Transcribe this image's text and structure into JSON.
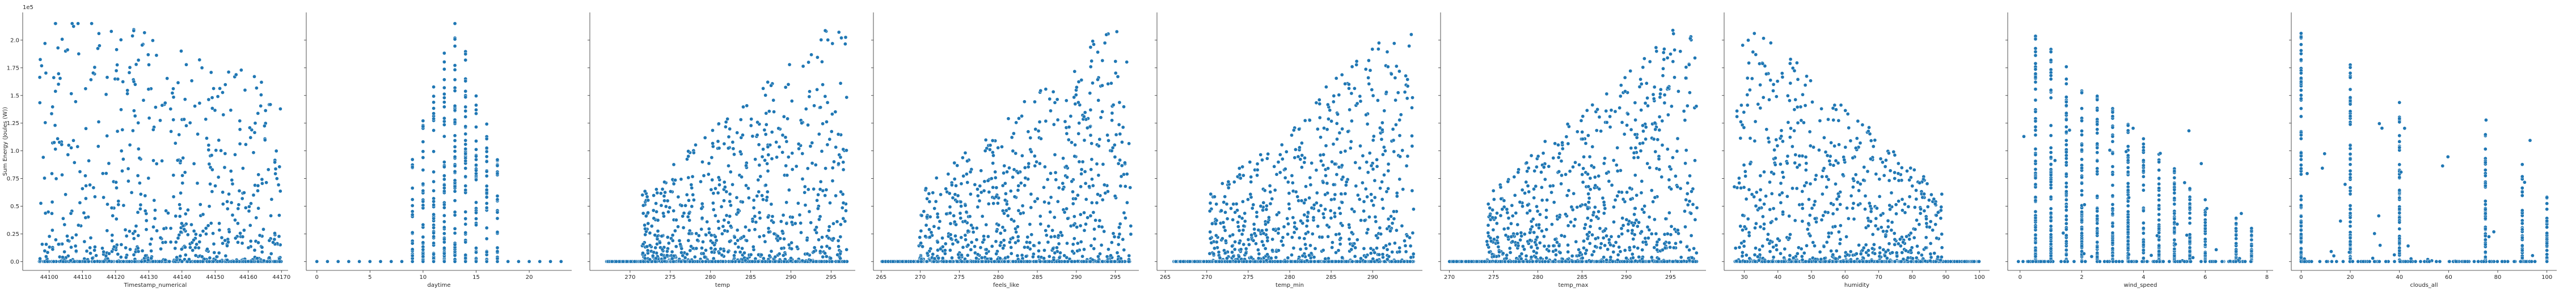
{
  "chart_data": [
    {
      "type": "scatter",
      "xlabel": "Timestamp_numerical",
      "ylabel": "Sum Energy (Joules (W))",
      "y_scale_label": "1e5",
      "xlim": [
        44092,
        44172
      ],
      "ylim": [
        -0.08,
        2.25
      ],
      "xticks": [
        44100,
        44110,
        44120,
        44130,
        44140,
        44150,
        44160,
        44170
      ],
      "yticks": [
        0.0,
        0.25,
        0.5,
        0.75,
        1.0,
        1.25,
        1.5,
        1.75,
        2.0
      ],
      "ytick_labels": [
        "0.0",
        "0.25",
        "0.5",
        "0.75",
        "1.0",
        "1.25",
        "1.5",
        "1.75",
        "2.0"
      ],
      "distribution": {
        "kind": "uniform",
        "range": [
          44097,
          44170
        ],
        "peak_y": 2.15
      }
    },
    {
      "type": "scatter",
      "xlabel": "daytime",
      "ylabel": "",
      "xlim": [
        -1,
        24
      ],
      "ylim": [
        -0.08,
        2.25
      ],
      "xticks": [
        0,
        5,
        10,
        15,
        20
      ],
      "yticks": [
        0.0,
        0.25,
        0.5,
        0.75,
        1.0,
        1.25,
        1.5,
        1.75,
        2.0
      ],
      "distribution": {
        "kind": "discrete",
        "values": [
          0,
          1,
          2,
          3,
          4,
          5,
          6,
          7,
          8,
          9,
          10,
          11,
          12,
          13,
          14,
          15,
          16,
          17,
          18,
          19,
          20,
          21,
          22,
          23
        ],
        "active_range": [
          9,
          17
        ],
        "peak_y": 2.15
      }
    },
    {
      "type": "scatter",
      "xlabel": "temp",
      "ylabel": "",
      "xlim": [
        265,
        298
      ],
      "ylim": [
        -0.08,
        2.25
      ],
      "xticks": [
        270,
        275,
        280,
        285,
        290,
        295
      ],
      "yticks": [
        0.0,
        0.25,
        0.5,
        0.75,
        1.0,
        1.25,
        1.5,
        1.75,
        2.0
      ],
      "distribution": {
        "kind": "rising",
        "range": [
          267,
          297
        ],
        "peak_y": 2.1
      }
    },
    {
      "type": "scatter",
      "xlabel": "feels_like",
      "ylabel": "",
      "xlim": [
        264,
        298
      ],
      "ylim": [
        -0.08,
        2.25
      ],
      "xticks": [
        265,
        270,
        275,
        280,
        285,
        290,
        295
      ],
      "yticks": [
        0.0,
        0.25,
        0.5,
        0.75,
        1.0,
        1.25,
        1.5,
        1.75,
        2.0
      ],
      "distribution": {
        "kind": "rising",
        "range": [
          265,
          297
        ],
        "peak_y": 2.1
      }
    },
    {
      "type": "scatter",
      "xlabel": "temp_min",
      "ylabel": "",
      "xlim": [
        264,
        296
      ],
      "ylim": [
        -0.08,
        2.25
      ],
      "xticks": [
        265,
        270,
        275,
        280,
        285,
        290
      ],
      "yticks": [
        0.0,
        0.25,
        0.5,
        0.75,
        1.0,
        1.25,
        1.5,
        1.75,
        2.0
      ],
      "distribution": {
        "kind": "rising",
        "range": [
          266,
          295
        ],
        "peak_y": 2.1
      }
    },
    {
      "type": "scatter",
      "xlabel": "temp_max",
      "ylabel": "",
      "xlim": [
        269,
        299
      ],
      "ylim": [
        -0.08,
        2.25
      ],
      "xticks": [
        270,
        275,
        280,
        285,
        290,
        295
      ],
      "yticks": [
        0.0,
        0.25,
        0.5,
        0.75,
        1.0,
        1.25,
        1.5,
        1.75,
        2.0
      ],
      "distribution": {
        "kind": "rising",
        "range": [
          270,
          298
        ],
        "peak_y": 2.1
      }
    },
    {
      "type": "scatter",
      "xlabel": "humidity",
      "ylabel": "",
      "xlim": [
        24,
        103
      ],
      "ylim": [
        -0.08,
        2.25
      ],
      "xticks": [
        30,
        40,
        50,
        60,
        70,
        80,
        90,
        100
      ],
      "yticks": [
        0.0,
        0.25,
        0.5,
        0.75,
        1.0,
        1.25,
        1.5,
        1.75,
        2.0
      ],
      "distribution": {
        "kind": "falling",
        "range": [
          27,
          100
        ],
        "peak_y": 2.1
      }
    },
    {
      "type": "scatter",
      "xlabel": "wind_speed",
      "ylabel": "",
      "xlim": [
        -0.4,
        8.2
      ],
      "ylim": [
        -0.08,
        2.25
      ],
      "xticks": [
        0,
        2,
        4,
        6,
        8
      ],
      "yticks": [
        0.0,
        0.25,
        0.5,
        0.75,
        1.0,
        1.25,
        1.5,
        1.75,
        2.0
      ],
      "distribution": {
        "kind": "columns",
        "values": [
          0.5,
          1.0,
          1.5,
          2.0,
          2.5,
          3.0,
          3.5,
          4.0,
          4.5,
          5.0,
          5.5,
          6.0,
          7.0,
          7.5
        ],
        "peak_y": 2.1
      }
    },
    {
      "type": "scatter",
      "xlabel": "clouds_all",
      "ylabel": "",
      "xlim": [
        -4,
        104
      ],
      "ylim": [
        -0.08,
        2.25
      ],
      "xticks": [
        0,
        20,
        40,
        60,
        80,
        100
      ],
      "yticks": [
        0.0,
        0.25,
        0.5,
        0.75,
        1.0,
        1.25,
        1.5,
        1.75,
        2.0
      ],
      "distribution": {
        "kind": "columns",
        "values": [
          0,
          20,
          40,
          75,
          90,
          100
        ],
        "peak_y": 2.15
      }
    }
  ],
  "colors": {
    "points": "#1f77b4",
    "axes": "#262626"
  }
}
